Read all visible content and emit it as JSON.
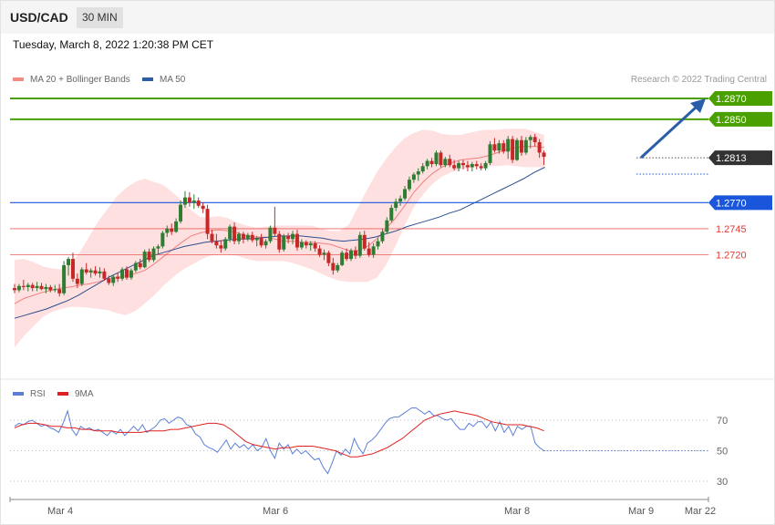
{
  "header": {
    "symbol": "USD/CAD",
    "timeframe": "30 MIN",
    "datetime": "Tuesday, March 8, 2022 1:20:38 PM CET"
  },
  "legend": {
    "items": [
      {
        "label": "MA 20 + Bollinger Bands",
        "color": "#f28b82"
      },
      {
        "label": "MA 50",
        "color": "#2b5ea7"
      }
    ],
    "credit": "Research © 2022 Trading Central"
  },
  "rsi_legend": {
    "items": [
      {
        "label": "RSI",
        "color": "#5b7fd6"
      },
      {
        "label": "9MA",
        "color": "#e02020"
      }
    ]
  },
  "colors": {
    "bull": "#2e7d32",
    "bear": "#c62828",
    "resistance": "#4aa000",
    "current": "#333333",
    "pivot": "#1a56db",
    "support": "#e53935",
    "band": "#ffd6d6",
    "ma20": "#f08080",
    "ma50": "#2b4f8f",
    "rsi": "#5b7fd6",
    "rsi_ma": "#e02020",
    "arrow": "#2b5ea7"
  },
  "chart_data": [
    {
      "type": "candlestick",
      "title": "USD/CAD",
      "ylim": [
        1.2663,
        1.2889
      ],
      "x_ticks": [
        "Mar 4",
        "Mar 6",
        "Mar 8",
        "Mar 9",
        "Mar 22"
      ],
      "price_levels": [
        {
          "value": 1.287,
          "label": "1.2870",
          "kind": "resistance"
        },
        {
          "value": 1.285,
          "label": "1.2850",
          "kind": "resistance"
        },
        {
          "value": 1.2813,
          "label": "1.2813",
          "kind": "current"
        },
        {
          "value": 1.277,
          "label": "1.2770",
          "kind": "pivot"
        },
        {
          "value": 1.2745,
          "label": "1.2745",
          "kind": "support"
        },
        {
          "value": 1.272,
          "label": "1.2720",
          "kind": "support"
        }
      ],
      "candles": [
        [
          1.2688,
          1.2692,
          1.2683,
          1.2686
        ],
        [
          1.2686,
          1.2692,
          1.2684,
          1.269
        ],
        [
          1.269,
          1.2696,
          1.2686,
          1.2689
        ],
        [
          1.2689,
          1.2693,
          1.2685,
          1.2691
        ],
        [
          1.2691,
          1.2693,
          1.2685,
          1.2688
        ],
        [
          1.2688,
          1.2694,
          1.2685,
          1.269
        ],
        [
          1.269,
          1.2693,
          1.2686,
          1.2687
        ],
        [
          1.2687,
          1.2692,
          1.2683,
          1.2689
        ],
        [
          1.2689,
          1.2691,
          1.2684,
          1.2686
        ],
        [
          1.2686,
          1.2691,
          1.2684,
          1.2687
        ],
        [
          1.2687,
          1.2692,
          1.268,
          1.2683
        ],
        [
          1.2683,
          1.2714,
          1.2681,
          1.271
        ],
        [
          1.271,
          1.2718,
          1.27,
          1.2716
        ],
        [
          1.2716,
          1.2722,
          1.2694,
          1.2697
        ],
        [
          1.2697,
          1.2702,
          1.2688,
          1.2692
        ],
        [
          1.2692,
          1.2708,
          1.269,
          1.2706
        ],
        [
          1.2706,
          1.2712,
          1.2701,
          1.2703
        ],
        [
          1.2703,
          1.2707,
          1.2698,
          1.2705
        ],
        [
          1.2705,
          1.2709,
          1.27,
          1.2702
        ],
        [
          1.2702,
          1.2708,
          1.2698,
          1.2704
        ],
        [
          1.2704,
          1.2707,
          1.2695,
          1.2697
        ],
        [
          1.2697,
          1.27,
          1.2691,
          1.2693
        ],
        [
          1.2693,
          1.2701,
          1.269,
          1.2699
        ],
        [
          1.2699,
          1.2703,
          1.2694,
          1.2697
        ],
        [
          1.2697,
          1.2708,
          1.2695,
          1.2706
        ],
        [
          1.2706,
          1.2709,
          1.2696,
          1.2698
        ],
        [
          1.2698,
          1.2707,
          1.2696,
          1.2705
        ],
        [
          1.2705,
          1.2714,
          1.2703,
          1.2712
        ],
        [
          1.2712,
          1.2716,
          1.2706,
          1.2708
        ],
        [
          1.2708,
          1.2725,
          1.2707,
          1.2723
        ],
        [
          1.2723,
          1.2726,
          1.2713,
          1.2715
        ],
        [
          1.2715,
          1.2728,
          1.2713,
          1.2726
        ],
        [
          1.2726,
          1.273,
          1.272,
          1.2728
        ],
        [
          1.2728,
          1.2743,
          1.2726,
          1.2741
        ],
        [
          1.2741,
          1.2748,
          1.2737,
          1.2745
        ],
        [
          1.2745,
          1.275,
          1.2739,
          1.2742
        ],
        [
          1.2742,
          1.2755,
          1.2741,
          1.2752
        ],
        [
          1.2752,
          1.2772,
          1.275,
          1.2768
        ],
        [
          1.2768,
          1.2781,
          1.2765,
          1.2775
        ],
        [
          1.2775,
          1.278,
          1.2766,
          1.277
        ],
        [
          1.277,
          1.2778,
          1.2764,
          1.2772
        ],
        [
          1.2772,
          1.2775,
          1.2765,
          1.2767
        ],
        [
          1.2767,
          1.277,
          1.276,
          1.2764
        ],
        [
          1.2764,
          1.2768,
          1.2735,
          1.274
        ],
        [
          1.274,
          1.2744,
          1.2731,
          1.2733
        ],
        [
          1.2733,
          1.274,
          1.2726,
          1.2729
        ],
        [
          1.2729,
          1.2734,
          1.2722,
          1.2726
        ],
        [
          1.2726,
          1.2737,
          1.2724,
          1.2735
        ],
        [
          1.2735,
          1.2749,
          1.2732,
          1.2747
        ],
        [
          1.2747,
          1.2751,
          1.273,
          1.2733
        ],
        [
          1.2733,
          1.2742,
          1.273,
          1.274
        ],
        [
          1.274,
          1.2742,
          1.2731,
          1.2735
        ],
        [
          1.2735,
          1.2741,
          1.2733,
          1.2739
        ],
        [
          1.2739,
          1.2742,
          1.2732,
          1.2734
        ],
        [
          1.2734,
          1.2738,
          1.2728,
          1.2736
        ],
        [
          1.2736,
          1.274,
          1.2727,
          1.2729
        ],
        [
          1.2729,
          1.2735,
          1.2726,
          1.2733
        ],
        [
          1.2733,
          1.2748,
          1.2731,
          1.2746
        ],
        [
          1.2746,
          1.2766,
          1.2738,
          1.274
        ],
        [
          1.274,
          1.2743,
          1.2722,
          1.2725
        ],
        [
          1.2725,
          1.274,
          1.2723,
          1.2738
        ],
        [
          1.2738,
          1.2741,
          1.2731,
          1.2735
        ],
        [
          1.2735,
          1.2743,
          1.273,
          1.274
        ],
        [
          1.274,
          1.2744,
          1.2724,
          1.2727
        ],
        [
          1.2727,
          1.2735,
          1.2725,
          1.2732
        ],
        [
          1.2732,
          1.2734,
          1.2726,
          1.2729
        ],
        [
          1.2729,
          1.2733,
          1.2724,
          1.2731
        ],
        [
          1.2731,
          1.2733,
          1.2723,
          1.2726
        ],
        [
          1.2726,
          1.2729,
          1.2718,
          1.272
        ],
        [
          1.272,
          1.2725,
          1.2715,
          1.2722
        ],
        [
          1.2722,
          1.2724,
          1.2709,
          1.2712
        ],
        [
          1.2712,
          1.2717,
          1.2701,
          1.2705
        ],
        [
          1.2705,
          1.2712,
          1.2703,
          1.271
        ],
        [
          1.271,
          1.2724,
          1.2709,
          1.2722
        ],
        [
          1.2722,
          1.2726,
          1.2714,
          1.2716
        ],
        [
          1.2716,
          1.2726,
          1.2714,
          1.2724
        ],
        [
          1.2724,
          1.2728,
          1.2716,
          1.2719
        ],
        [
          1.2719,
          1.2742,
          1.2717,
          1.2739
        ],
        [
          1.2739,
          1.2743,
          1.2724,
          1.2726
        ],
        [
          1.2726,
          1.2732,
          1.2718,
          1.272
        ],
        [
          1.272,
          1.2731,
          1.2717,
          1.2728
        ],
        [
          1.2728,
          1.2736,
          1.2725,
          1.2733
        ],
        [
          1.2733,
          1.2745,
          1.2731,
          1.2742
        ],
        [
          1.2742,
          1.2756,
          1.274,
          1.2753
        ],
        [
          1.2753,
          1.2768,
          1.2751,
          1.2765
        ],
        [
          1.2765,
          1.2774,
          1.2762,
          1.2771
        ],
        [
          1.2771,
          1.2777,
          1.2767,
          1.2774
        ],
        [
          1.2774,
          1.2786,
          1.2772,
          1.2783
        ],
        [
          1.2783,
          1.2795,
          1.2781,
          1.2792
        ],
        [
          1.2792,
          1.2799,
          1.2789,
          1.2797
        ],
        [
          1.2797,
          1.2803,
          1.2791,
          1.28
        ],
        [
          1.28,
          1.2808,
          1.2798,
          1.2805
        ],
        [
          1.2805,
          1.2812,
          1.2802,
          1.281
        ],
        [
          1.281,
          1.2813,
          1.2804,
          1.2807
        ],
        [
          1.2807,
          1.282,
          1.2805,
          1.2818
        ],
        [
          1.2818,
          1.282,
          1.2804,
          1.2806
        ],
        [
          1.2806,
          1.2814,
          1.2804,
          1.2812
        ],
        [
          1.2812,
          1.2816,
          1.2804,
          1.2806
        ],
        [
          1.2806,
          1.2811,
          1.2801,
          1.2803
        ],
        [
          1.2803,
          1.281,
          1.28,
          1.2808
        ],
        [
          1.2808,
          1.2811,
          1.2802,
          1.2806
        ],
        [
          1.2806,
          1.281,
          1.28,
          1.2804
        ],
        [
          1.2804,
          1.2809,
          1.28,
          1.2807
        ],
        [
          1.2807,
          1.281,
          1.2802,
          1.2805
        ],
        [
          1.2805,
          1.2808,
          1.2801,
          1.2803
        ],
        [
          1.2803,
          1.281,
          1.2801,
          1.2808
        ],
        [
          1.2808,
          1.2829,
          1.2806,
          1.2826
        ],
        [
          1.2826,
          1.2832,
          1.2818,
          1.282
        ],
        [
          1.282,
          1.283,
          1.2817,
          1.2827
        ],
        [
          1.2827,
          1.283,
          1.2817,
          1.2819
        ],
        [
          1.2819,
          1.2834,
          1.2812,
          1.2831
        ],
        [
          1.2831,
          1.2834,
          1.2808,
          1.2811
        ],
        [
          1.2811,
          1.2832,
          1.281,
          1.283
        ],
        [
          1.283,
          1.2834,
          1.2815,
          1.2818
        ],
        [
          1.2818,
          1.2833,
          1.2816,
          1.283
        ],
        [
          1.283,
          1.2835,
          1.2822,
          1.2833
        ],
        [
          1.2833,
          1.2836,
          1.2824,
          1.2828
        ],
        [
          1.2828,
          1.2831,
          1.2813,
          1.2818
        ],
        [
          1.2818,
          1.282,
          1.2806,
          1.2814
        ]
      ],
      "ma20": [
        1.2673,
        1.2678,
        1.2681,
        1.2684,
        1.2686,
        1.2688,
        1.2689,
        1.2691,
        1.2692,
        1.2694,
        1.2697,
        1.2698,
        1.27,
        1.2702,
        1.2705,
        1.2711,
        1.2718,
        1.2725,
        1.2732,
        1.2738,
        1.2741,
        1.2743,
        1.2744,
        1.2743,
        1.2741,
        1.2738,
        1.2737,
        1.2737,
        1.2735,
        1.2733,
        1.2733,
        1.2732,
        1.2732,
        1.2731,
        1.273,
        1.2727,
        1.2724,
        1.2724,
        1.2728,
        1.2735,
        1.2745,
        1.2755,
        1.2767,
        1.278,
        1.279,
        1.2798,
        1.2804,
        1.2808,
        1.2811,
        1.2812,
        1.2813,
        1.2815,
        1.2818,
        1.2821,
        1.2823,
        1.2824,
        1.2824,
        1.2823
      ],
      "bb_upper": [
        1.2715,
        1.2716,
        1.2713,
        1.2709,
        1.2707,
        1.2706,
        1.2711,
        1.2722,
        1.2737,
        1.2752,
        1.2764,
        1.2776,
        1.2784,
        1.279,
        1.2793,
        1.279,
        1.2787,
        1.278,
        1.2772,
        1.2763,
        1.2756,
        1.2756,
        1.2757,
        1.2755,
        1.2751,
        1.2748,
        1.2746,
        1.2747,
        1.2748,
        1.2748,
        1.2748,
        1.2748,
        1.2748,
        1.2745,
        1.2743,
        1.2743,
        1.2749,
        1.2766,
        1.2783,
        1.2799,
        1.2812,
        1.2823,
        1.2832,
        1.2837,
        1.284,
        1.2839,
        1.2836,
        1.2835,
        1.2835,
        1.2837,
        1.2839,
        1.284,
        1.284,
        1.2841,
        1.2841,
        1.2841,
        1.2838,
        1.2835
      ],
      "bb_lower": [
        1.2631,
        1.2642,
        1.2651,
        1.266,
        1.2665,
        1.2668,
        1.267,
        1.267,
        1.2669,
        1.2668,
        1.2667,
        1.2664,
        1.2662,
        1.2666,
        1.2673,
        1.2681,
        1.269,
        1.2698,
        1.2705,
        1.271,
        1.2715,
        1.2719,
        1.272,
        1.272,
        1.2719,
        1.2716,
        1.2714,
        1.2714,
        1.2714,
        1.2714,
        1.2712,
        1.2709,
        1.2706,
        1.2702,
        1.2698,
        1.2695,
        1.2694,
        1.2694,
        1.2694,
        1.2698,
        1.271,
        1.2728,
        1.2748,
        1.2766,
        1.2778,
        1.2788,
        1.2795,
        1.2799,
        1.2802,
        1.2803,
        1.2805,
        1.2805,
        1.2805,
        1.2806,
        1.2805,
        1.2804,
        1.2804,
        1.2804
      ],
      "ma50": [
        1.2659,
        1.2662,
        1.2665,
        1.2668,
        1.2672,
        1.2676,
        1.2681,
        1.2687,
        1.2693,
        1.2699,
        1.2704,
        1.2709,
        1.2714,
        1.2719,
        1.2722,
        1.2725,
        1.2728,
        1.273,
        1.2732,
        1.2733,
        1.2734,
        1.2735,
        1.2735,
        1.2736,
        1.2737,
        1.2738,
        1.2738,
        1.2738,
        1.2737,
        1.2736,
        1.2734,
        1.2733,
        1.2734,
        1.2735,
        1.2737,
        1.274,
        1.2743,
        1.2747,
        1.275,
        1.2753,
        1.2756,
        1.276,
        1.2763,
        1.2768,
        1.2773,
        1.2778,
        1.2783,
        1.2788,
        1.2793,
        1.2799,
        1.2804
      ]
    },
    {
      "type": "line",
      "title": "RSI",
      "ylim": [
        22,
        78
      ],
      "y_ticks": [
        70,
        50,
        30
      ],
      "series": [
        {
          "name": "RSI",
          "values": [
            66,
            68,
            67,
            69,
            70,
            68,
            66,
            67,
            65,
            64,
            62,
            68,
            76,
            64,
            60,
            66,
            64,
            65,
            63,
            64,
            62,
            60,
            63,
            61,
            64,
            60,
            63,
            66,
            63,
            67,
            62,
            64,
            66,
            70,
            71,
            68,
            70,
            72,
            71,
            67,
            66,
            61,
            59,
            54,
            52,
            51,
            49,
            53,
            57,
            51,
            55,
            52,
            54,
            51,
            54,
            50,
            52,
            58,
            50,
            45,
            55,
            51,
            54,
            48,
            51,
            48,
            50,
            47,
            44,
            45,
            39,
            35,
            42,
            50,
            47,
            51,
            48,
            58,
            52,
            48,
            55,
            57,
            60,
            64,
            68,
            71,
            72,
            72,
            74,
            76,
            78,
            78,
            76,
            74,
            76,
            73,
            73,
            71,
            70,
            71,
            67,
            64,
            64,
            68,
            66,
            69,
            69,
            65,
            69,
            63,
            69,
            62,
            66,
            60,
            66,
            64,
            66,
            66,
            55,
            52,
            50
          ]
        },
        {
          "name": "9MA",
          "values": [
            65,
            67,
            68,
            68,
            67,
            66,
            66,
            65,
            65,
            64,
            64,
            63,
            63,
            63,
            62,
            62,
            62,
            62,
            63,
            63,
            63,
            64,
            64,
            65,
            66,
            67,
            68,
            68,
            67,
            64,
            60,
            56,
            54,
            53,
            52,
            51,
            52,
            52,
            53,
            53,
            53,
            52,
            51,
            50,
            48,
            46,
            46,
            47,
            48,
            50,
            52,
            55,
            58,
            62,
            66,
            70,
            72,
            74,
            75,
            76,
            75,
            74,
            73,
            71,
            69,
            68,
            67,
            67,
            67,
            66,
            65,
            63
          ]
        }
      ]
    }
  ]
}
